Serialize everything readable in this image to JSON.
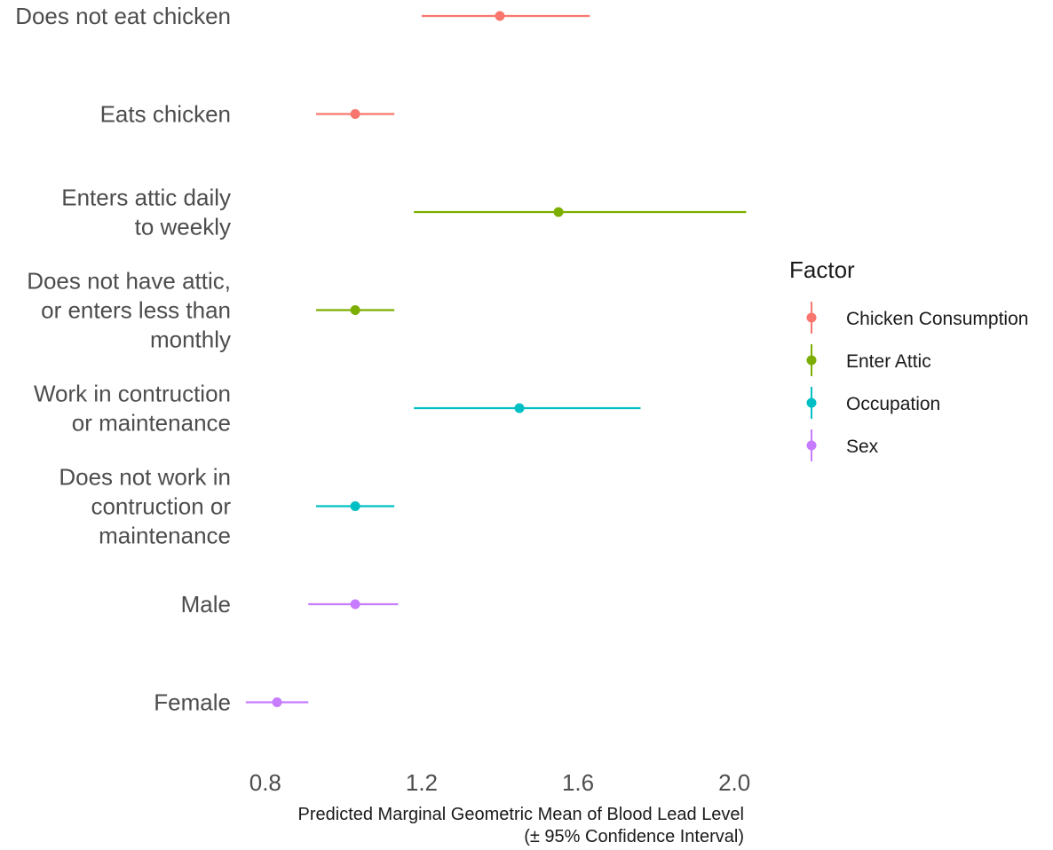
{
  "chart_data": {
    "type": "scatter",
    "xlabel": "Predicted Marginal Geometric Mean of Blood Lead Level\n(± 95% Confidence Interval)",
    "xlim": [
      0.73,
      2.07
    ],
    "xticks": [
      0.8,
      1.2,
      1.6,
      2.0
    ],
    "xtick_labels": [
      "0.8",
      "1.2",
      "1.6",
      "2.0"
    ],
    "grid": false,
    "legend": {
      "title": "Factor",
      "position": "right",
      "entries": [
        {
          "name": "Chicken Consumption",
          "color": "#F8766D"
        },
        {
          "name": "Enter Attic",
          "color": "#7CAE00"
        },
        {
          "name": "Occupation",
          "color": "#00BFC4"
        },
        {
          "name": "Sex",
          "color": "#C77CFF"
        }
      ]
    },
    "points": [
      {
        "category": "Does not eat chicken",
        "label_lines": [
          "Does not eat chicken"
        ],
        "series": "Chicken Consumption",
        "estimate": 1.4,
        "lower": 1.2,
        "upper": 1.63
      },
      {
        "category": "Eats chicken",
        "label_lines": [
          "Eats chicken"
        ],
        "series": "Chicken Consumption",
        "estimate": 1.03,
        "lower": 0.93,
        "upper": 1.13
      },
      {
        "category": "Enters attic daily to weekly",
        "label_lines": [
          "Enters attic daily",
          "to weekly"
        ],
        "series": "Enter Attic",
        "estimate": 1.55,
        "lower": 1.18,
        "upper": 2.03
      },
      {
        "category": "Does not have attic, or enters less than monthly",
        "label_lines": [
          "Does not have attic,",
          "or enters less than",
          "monthly"
        ],
        "series": "Enter Attic",
        "estimate": 1.03,
        "lower": 0.93,
        "upper": 1.13
      },
      {
        "category": "Work in contruction or maintenance",
        "label_lines": [
          "Work in contruction",
          "or maintenance"
        ],
        "series": "Occupation",
        "estimate": 1.45,
        "lower": 1.18,
        "upper": 1.76
      },
      {
        "category": "Does not work in contruction or maintenance",
        "label_lines": [
          "Does not work in",
          "contruction or",
          "maintenance"
        ],
        "series": "Occupation",
        "estimate": 1.03,
        "lower": 0.93,
        "upper": 1.13
      },
      {
        "category": "Male",
        "label_lines": [
          "Male"
        ],
        "series": "Sex",
        "estimate": 1.03,
        "lower": 0.91,
        "upper": 1.14
      },
      {
        "category": "Female",
        "label_lines": [
          "Female"
        ],
        "series": "Sex",
        "estimate": 0.83,
        "lower": 0.75,
        "upper": 0.91
      }
    ]
  }
}
